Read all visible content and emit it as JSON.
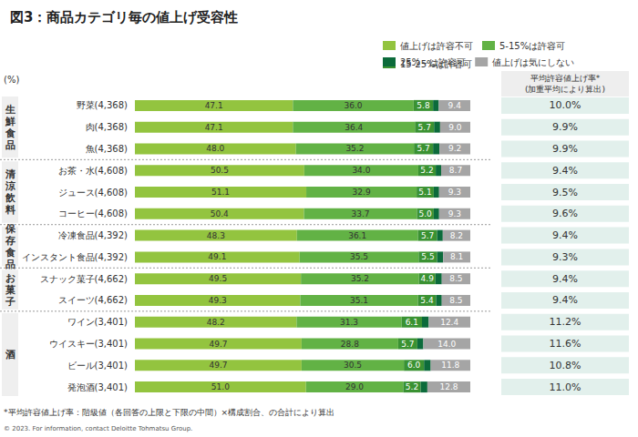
{
  "chart_data": {
    "type": "bar",
    "title": "図3：商品カテゴリ毎の値上げ受容性",
    "orientation": "horizontal",
    "stacked": true,
    "data_labels": true,
    "tick_labels": "y",
    "legend": "upper right",
    "value_axis_label": "(%)",
    "xlim": [
      0,
      100
    ],
    "categories": [
      "野菜(4,368)",
      "肉(4,368)",
      "魚(4,368)",
      "お茶・水(4,608)",
      "ジュース(4,608)",
      "コーヒー(4,608)",
      "冷凍食品(4,392)",
      "インスタント食品(4,392)",
      "スナック菓子(4,662)",
      "スイーツ(4,662)",
      "ワイン(3,401)",
      "ウイスキー(3,401)",
      "ビール(3,401)",
      "発泡酒(3,401)"
    ],
    "groups": [
      {
        "label": "生鮮食品",
        "categories": [
          "野菜(4,368)",
          "肉(4,368)",
          "魚(4,368)"
        ]
      },
      {
        "label": "清涼飲料",
        "categories": [
          "お茶・水(4,608)",
          "ジュース(4,608)",
          "コーヒー(4,608)"
        ]
      },
      {
        "label": "保存食品",
        "categories": [
          "冷凍食品(4,392)",
          "インスタント食品(4,392)"
        ]
      },
      {
        "label": "お菓子",
        "categories": [
          "スナック菓子(4,662)",
          "スイーツ(4,662)"
        ]
      },
      {
        "label": "酒",
        "categories": [
          "ワイン(3,401)",
          "ウイスキー(3,401)",
          "ビール(3,401)",
          "発泡酒(3,401)"
        ]
      }
    ],
    "series": [
      {
        "name": "値上げは許容不可",
        "color": "#93c43f",
        "values": [
          47.1,
          47.1,
          48.0,
          50.5,
          51.1,
          50.4,
          48.3,
          49.1,
          49.5,
          49.3,
          48.2,
          49.7,
          49.7,
          51.0
        ],
        "value_labels": [
          "47.1",
          "47.1",
          "48.0",
          "50.5",
          "51.1",
          "50.4",
          "48.3",
          "49.1",
          "49.5",
          "49.3",
          "48.2",
          "49.7",
          "49.7",
          "51.0"
        ]
      },
      {
        "name": "5-15%は許容可",
        "color": "#62b245",
        "values": [
          36.0,
          36.4,
          35.2,
          34.0,
          32.9,
          33.7,
          36.1,
          35.5,
          35.2,
          35.1,
          31.3,
          28.8,
          30.5,
          29.0
        ],
        "value_labels": [
          "36.0",
          "36.4",
          "35.2",
          "34.0",
          "32.9",
          "33.7",
          "36.1",
          "35.5",
          "35.2",
          "35.1",
          "31.3",
          "28.8",
          "30.5",
          "29.0"
        ]
      },
      {
        "name": "15-25%は許容可",
        "color": "#3a9232",
        "values": [
          5.8,
          5.7,
          5.7,
          5.2,
          5.1,
          5.0,
          5.7,
          5.5,
          4.9,
          5.4,
          6.1,
          5.7,
          6.0,
          5.2
        ],
        "value_labels": [
          "5.8",
          "5.7",
          "5.7",
          "5.2",
          "5.1",
          "5.0",
          "5.7",
          "5.5",
          "4.9",
          "5.4",
          "6.1",
          "5.7",
          "6.0",
          "5.2"
        ]
      },
      {
        "name": "25%～は許容可",
        "color": "#0c6b3b",
        "data_labels": false,
        "values": [
          1.7,
          1.8,
          1.9,
          1.6,
          1.6,
          1.6,
          1.7,
          1.8,
          1.9,
          1.7,
          2.0,
          1.8,
          2.0,
          2.0
        ]
      },
      {
        "name": "値上げは気にしない",
        "color": "#a5a5a5",
        "values": [
          9.4,
          9.0,
          9.2,
          8.7,
          9.3,
          9.3,
          8.2,
          8.1,
          8.5,
          8.5,
          12.4,
          14.0,
          11.8,
          12.8
        ],
        "value_labels": [
          "9.4",
          "9.0",
          "9.2",
          "8.7",
          "9.3",
          "9.3",
          "8.2",
          "8.1",
          "8.5",
          "8.5",
          "12.4",
          "14.0",
          "11.8",
          "12.8"
        ]
      }
    ],
    "average_rate": {
      "title": "平均許容値上げ率*",
      "subtitle": "(加重平均により算出)",
      "values": [
        10.0,
        9.9,
        9.9,
        9.4,
        9.5,
        9.6,
        9.4,
        9.3,
        9.4,
        9.4,
        11.2,
        11.6,
        10.8,
        11.0
      ],
      "value_labels": [
        "10.0%",
        "9.9%",
        "9.9%",
        "9.4%",
        "9.5%",
        "9.6%",
        "9.4%",
        "9.3%",
        "9.4%",
        "9.4%",
        "11.2%",
        "11.6%",
        "10.8%",
        "11.0%"
      ]
    },
    "footnote": "*平均許容値上げ率：階級値（各回答の上限と下限の中間）×構成割合、の合計により算出",
    "source": "© 2023. For information, contact Deloitte Tohmatsu Group."
  }
}
